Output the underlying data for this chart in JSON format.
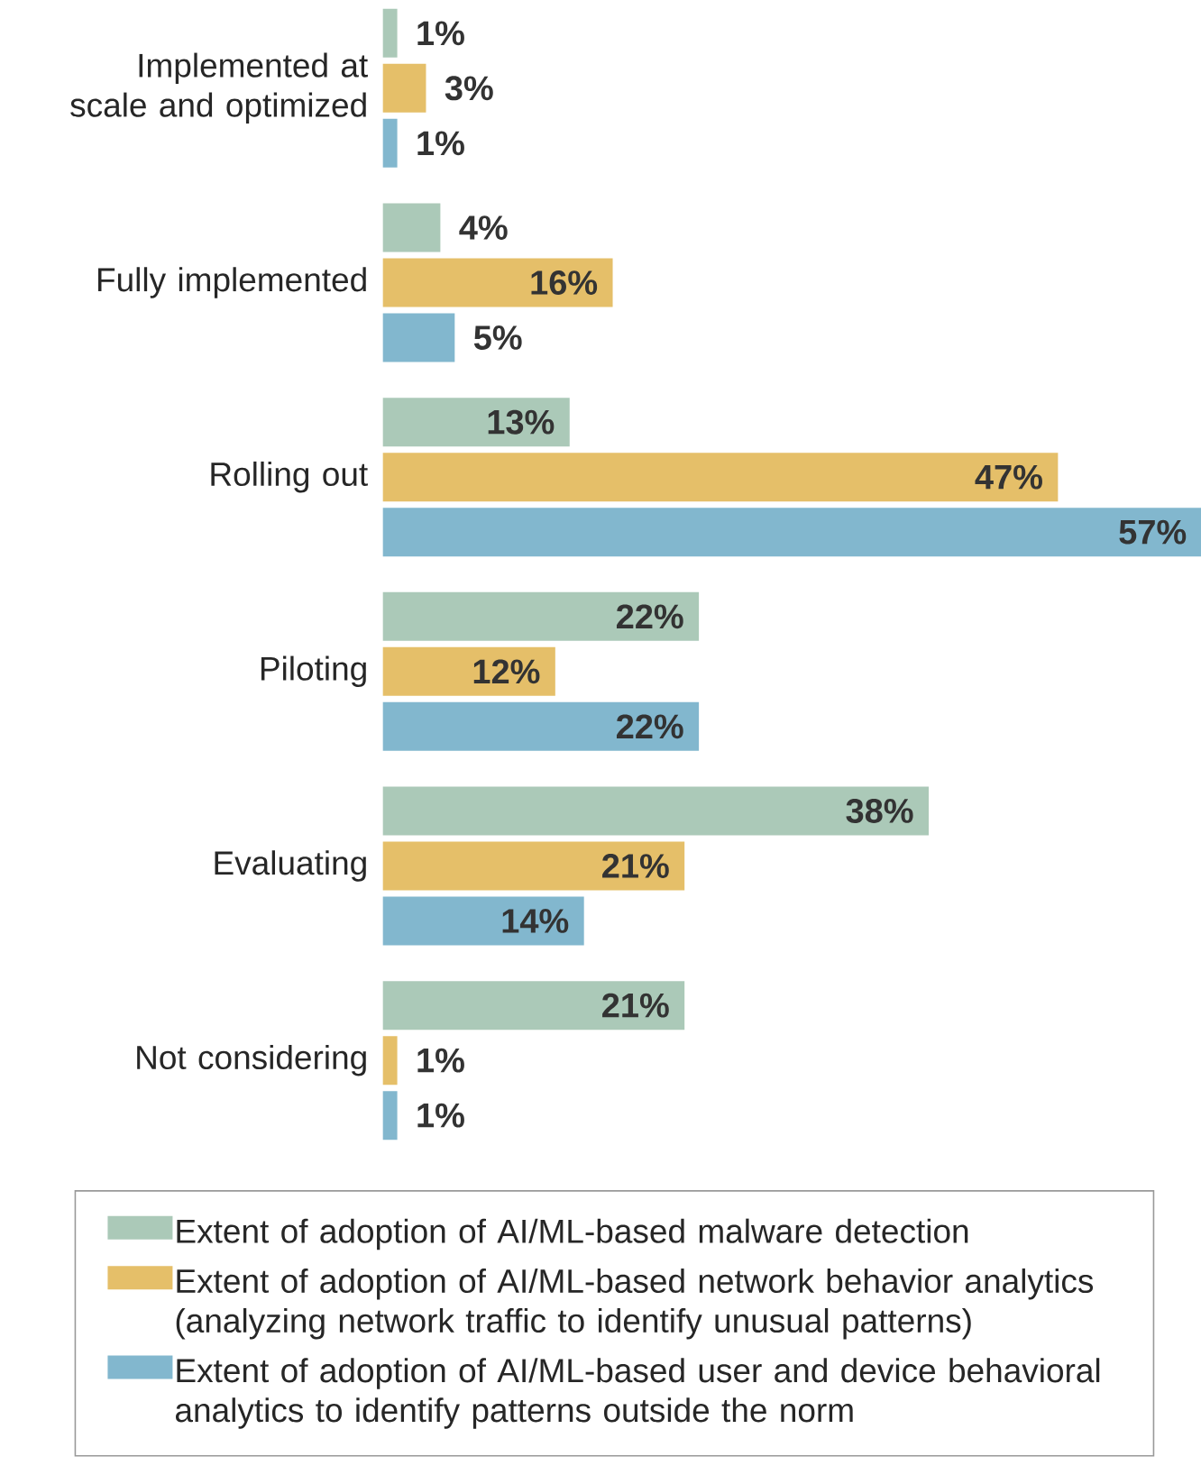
{
  "chart_data": {
    "type": "bar",
    "orientation": "horizontal",
    "categories": [
      "Implemented at scale and optimized",
      "Fully implemented",
      "Rolling out",
      "Piloting",
      "Evaluating",
      "Not considering"
    ],
    "series": [
      {
        "name": "Extent of adoption of AI/ML-based malware detection",
        "color": "#abc9b8",
        "values": [
          1,
          4,
          13,
          22,
          38,
          21
        ],
        "value_labels": [
          "1%",
          "4%",
          "13%",
          "22%",
          "38%",
          "21%"
        ]
      },
      {
        "name": "Extent of adoption of AI/ML-based network behavior analytics (analyzing network traffic to identify unusual patterns)",
        "color": "#e5bf69",
        "values": [
          3,
          16,
          47,
          12,
          21,
          1
        ],
        "value_labels": [
          "3%",
          "16%",
          "47%",
          "12%",
          "21%",
          "1%"
        ]
      },
      {
        "name": "Extent of adoption of AI/ML-based user and device behavioral analytics to identify patterns outside the norm",
        "color": "#82b7ce",
        "values": [
          1,
          5,
          57,
          22,
          14,
          1
        ],
        "value_labels": [
          "1%",
          "5%",
          "57%",
          "22%",
          "14%",
          "1%"
        ]
      }
    ],
    "xlim": [
      0,
      57
    ],
    "tick_labels": "y",
    "legend": "bottom"
  }
}
